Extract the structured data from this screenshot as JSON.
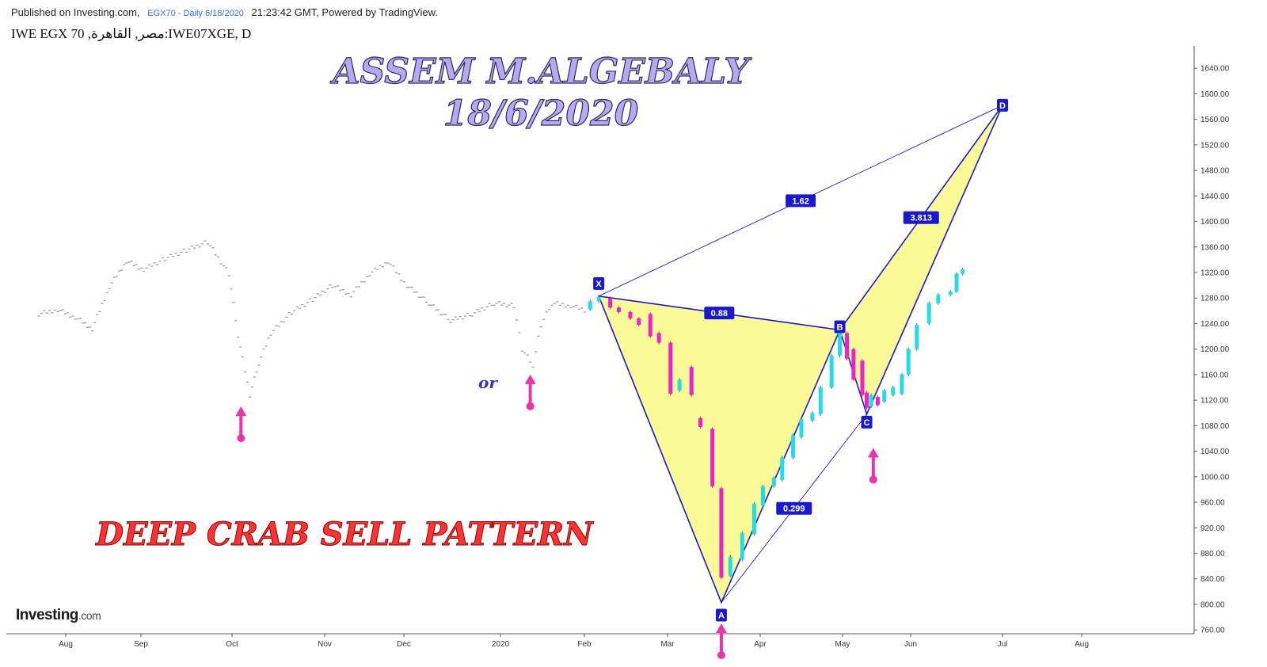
{
  "header": {
    "published": "Published on Investing.com,",
    "symbol_info": "EGX70 - Daily 6/18/2020",
    "time": "21:23:42 GMT, Powered by TradingView."
  },
  "symbol_line": "IWE EGX 70 ,مصر, القاهرة:IWE07XGE, D",
  "watermark": {
    "title": "ASSEM M.ALGEBALY",
    "date": "18/6/2020",
    "pattern": "DEEP CRAB SELL PATTERN",
    "or_text": "or"
  },
  "logo": {
    "brand": "Investing",
    "domain": ".com"
  },
  "colors": {
    "bull": "#22dde8",
    "bear": "#ee22cc",
    "pattern_fill": "#fafa96",
    "pattern_line": "#1a1acc",
    "arrow": "#ee33aa",
    "title_fill": "#b8a8f0",
    "pattern_text": "#ff3333"
  },
  "chart_data": {
    "type": "candlestick",
    "x_ticks": [
      "Aug",
      "Sep",
      "Oct",
      "Nov",
      "Dec",
      "2020",
      "Feb",
      "Mar",
      "Apr",
      "May",
      "Jun",
      "Jul",
      "Aug"
    ],
    "y_ticks": [
      "760.00",
      "800.00",
      "840.00",
      "880.00",
      "920.00",
      "960.00",
      "1000.00",
      "1040.00",
      "1080.00",
      "1120.00",
      "1160.00",
      "1200.00",
      "1240.00",
      "1280.00",
      "1320.00",
      "1360.00",
      "1400.00",
      "1440.00",
      "1480.00",
      "1520.00",
      "1560.00",
      "1600.00",
      "1640.00"
    ],
    "ylim": [
      754,
      1675
    ],
    "history_points": [
      [
        "2019-07-22",
        1255
      ],
      [
        "2019-07-29",
        1262
      ],
      [
        "2019-08-05",
        1250
      ],
      [
        "2019-08-12",
        1232
      ],
      [
        "2019-08-19",
        1298
      ],
      [
        "2019-08-26",
        1338
      ],
      [
        "2019-09-02",
        1325
      ],
      [
        "2019-09-09",
        1342
      ],
      [
        "2019-09-16",
        1355
      ],
      [
        "2019-09-23",
        1368
      ],
      [
        "2019-09-30",
        1318
      ],
      [
        "2019-10-03",
        1222
      ],
      [
        "2019-10-07",
        1128
      ],
      [
        "2019-10-10",
        1178
      ],
      [
        "2019-10-14",
        1225
      ],
      [
        "2019-10-21",
        1258
      ],
      [
        "2019-10-28",
        1278
      ],
      [
        "2019-11-04",
        1300
      ],
      [
        "2019-11-11",
        1285
      ],
      [
        "2019-11-18",
        1318
      ],
      [
        "2019-11-25",
        1338
      ],
      [
        "2019-12-02",
        1300
      ],
      [
        "2019-12-09",
        1272
      ],
      [
        "2019-12-16",
        1245
      ],
      [
        "2019-12-23",
        1255
      ],
      [
        "2019-12-30",
        1272
      ],
      [
        "2020-01-06",
        1268
      ],
      [
        "2020-01-09",
        1200
      ],
      [
        "2020-01-13",
        1175
      ],
      [
        "2020-01-16",
        1238
      ],
      [
        "2020-01-20",
        1272
      ],
      [
        "2020-01-27",
        1268
      ],
      [
        "2020-02-02",
        1260
      ]
    ],
    "candles": [
      [
        "2020-02-03",
        1262,
        1275
      ],
      [
        "2020-02-06",
        1275,
        1282
      ],
      [
        "2020-02-10",
        1280,
        1265
      ],
      [
        "2020-02-13",
        1265,
        1258
      ],
      [
        "2020-02-17",
        1258,
        1248
      ],
      [
        "2020-02-20",
        1248,
        1238
      ],
      [
        "2020-02-24",
        1255,
        1220
      ],
      [
        "2020-02-27",
        1225,
        1210
      ],
      [
        "2020-03-02",
        1210,
        1130
      ],
      [
        "2020-03-05",
        1135,
        1152
      ],
      [
        "2020-03-09",
        1172,
        1128
      ],
      [
        "2020-03-12",
        1092,
        1078
      ],
      [
        "2020-03-16",
        1075,
        985
      ],
      [
        "2020-03-19",
        982,
        842
      ],
      [
        "2020-03-22",
        845,
        875
      ],
      [
        "2020-03-26",
        870,
        912
      ],
      [
        "2020-03-30",
        910,
        958
      ],
      [
        "2020-04-02",
        955,
        985
      ],
      [
        "2020-04-06",
        985,
        998
      ],
      [
        "2020-04-09",
        995,
        1030
      ],
      [
        "2020-04-13",
        1030,
        1065
      ],
      [
        "2020-04-16",
        1062,
        1090
      ],
      [
        "2020-04-20",
        1088,
        1100
      ],
      [
        "2020-04-23",
        1098,
        1140
      ],
      [
        "2020-04-27",
        1140,
        1190
      ],
      [
        "2020-04-30",
        1190,
        1225
      ],
      [
        "2020-05-03",
        1225,
        1185
      ],
      [
        "2020-05-06",
        1200,
        1152
      ],
      [
        "2020-05-10",
        1182,
        1128
      ],
      [
        "2020-05-12",
        1132,
        1108
      ],
      [
        "2020-05-14",
        1110,
        1128
      ],
      [
        "2020-05-17",
        1125,
        1112
      ],
      [
        "2020-05-20",
        1118,
        1135
      ],
      [
        "2020-05-24",
        1128,
        1140
      ],
      [
        "2020-05-28",
        1130,
        1160
      ],
      [
        "2020-05-31",
        1160,
        1200
      ],
      [
        "2020-06-03",
        1200,
        1238
      ],
      [
        "2020-06-07",
        1240,
        1272
      ],
      [
        "2020-06-10",
        1272,
        1285
      ],
      [
        "2020-06-14",
        1285,
        1290
      ],
      [
        "2020-06-16",
        1290,
        1318
      ],
      [
        "2020-06-18",
        1318,
        1325
      ]
    ],
    "pattern": {
      "name": "DEEP CRAB SELL PATTERN",
      "points": [
        {
          "label": "X",
          "date": "2020-02-06",
          "price": 1283
        },
        {
          "label": "A",
          "date": "2020-03-19",
          "price": 803
        },
        {
          "label": "B",
          "date": "2020-04-30",
          "price": 1230
        },
        {
          "label": "C",
          "date": "2020-05-12",
          "price": 1098
        },
        {
          "label": "D",
          "date": "2020-07-01",
          "price": 1582
        }
      ],
      "ratios": [
        {
          "text": "0.88",
          "from": "X",
          "to": "B"
        },
        {
          "text": "1.62",
          "from": "X",
          "to": "D"
        },
        {
          "text": "0.299",
          "from": "A",
          "to": "C"
        },
        {
          "text": "3.813",
          "from": "B",
          "to": "D"
        }
      ]
    },
    "up_arrows": [
      {
        "date": "2019-10-04",
        "price": 1125
      },
      {
        "date": "2020-01-12",
        "price": 1175
      },
      {
        "date": "2020-03-19",
        "price": 785
      },
      {
        "date": "2020-05-15",
        "price": 1060
      }
    ]
  }
}
